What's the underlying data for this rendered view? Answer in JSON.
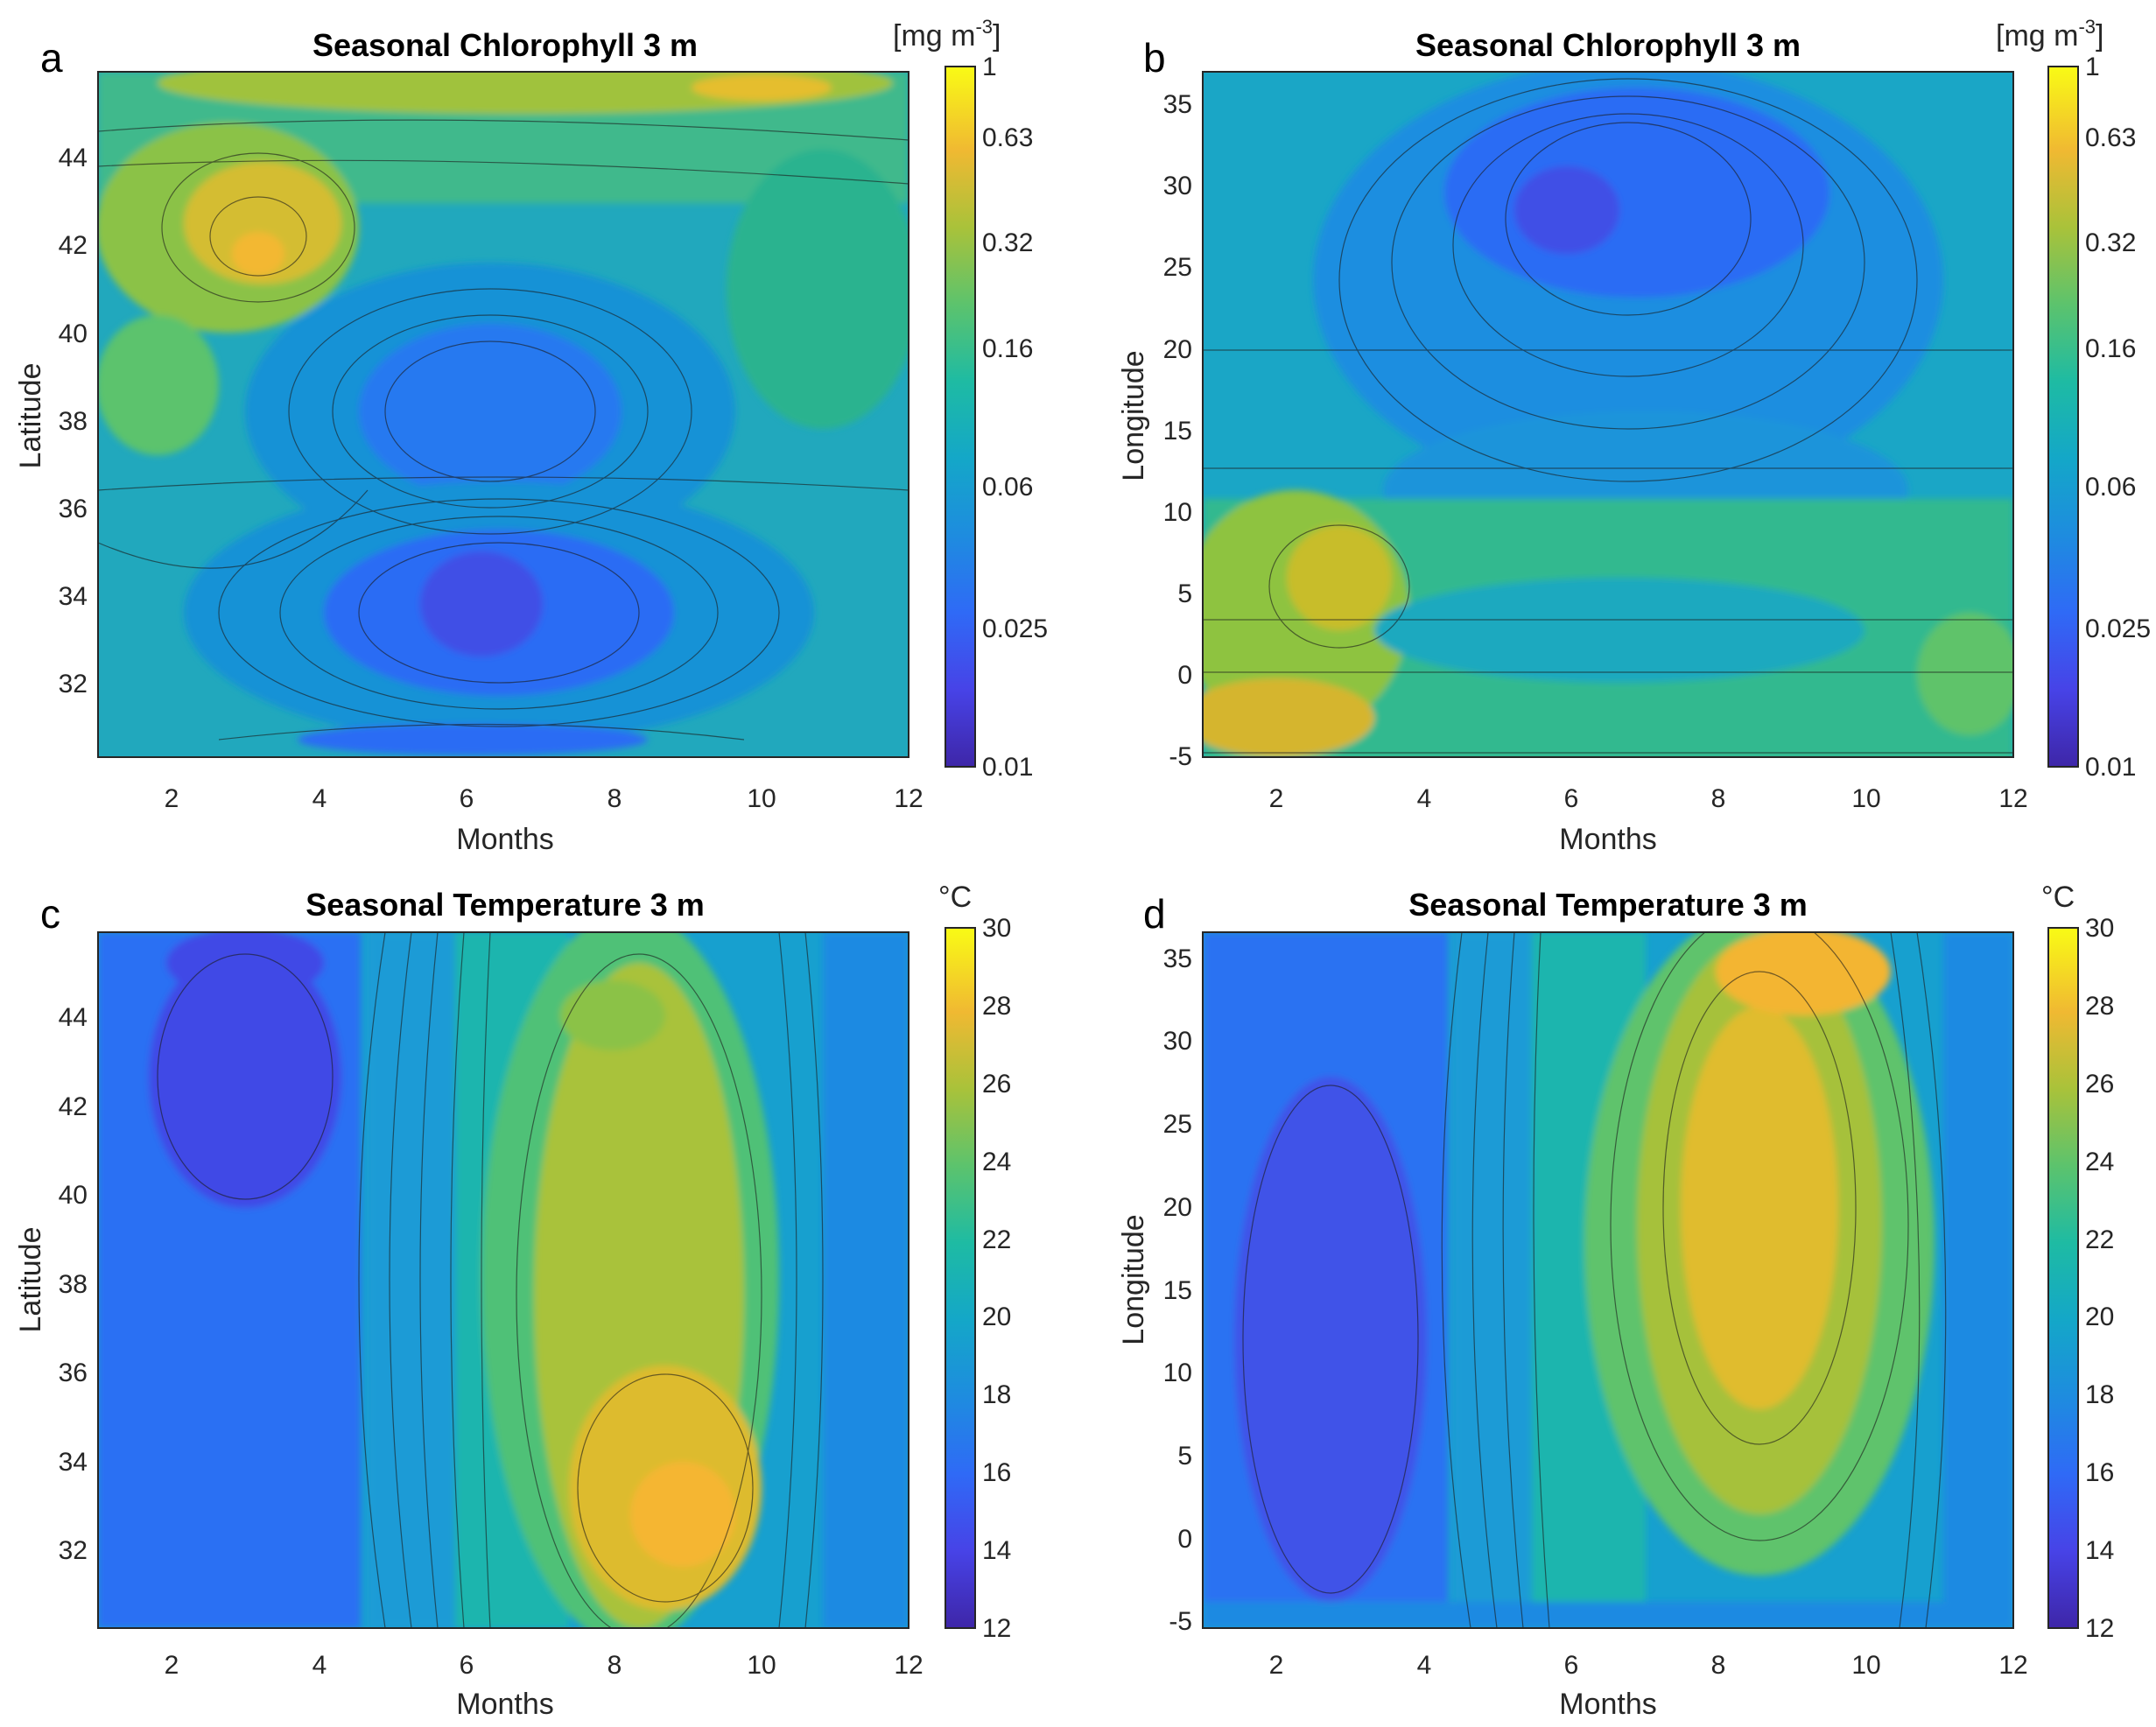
{
  "figure": {
    "panels": [
      {
        "id": "a",
        "letter": "a",
        "title": "Seasonal Chlorophyll 3 m",
        "variable": "chl"
      },
      {
        "id": "b",
        "letter": "b",
        "title": "Seasonal Chlorophyll 3 m",
        "variable": "chl"
      },
      {
        "id": "c",
        "letter": "c",
        "title": "Seasonal Temperature 3 m",
        "variable": "temp"
      },
      {
        "id": "d",
        "letter": "d",
        "title": "Seasonal Temperature 3 m",
        "variable": "temp"
      }
    ]
  },
  "chart_data": [
    {
      "id": "a",
      "type": "heatmap",
      "title": "Seasonal Chlorophyll 3 m",
      "xlabel": "Months",
      "ylabel": "Latitude",
      "xlim": [
        1,
        12
      ],
      "ylim": [
        30.4,
        45.8
      ],
      "xticks": [
        "2",
        "4",
        "6",
        "8",
        "10",
        "12"
      ],
      "yticks": [
        "32",
        "34",
        "36",
        "38",
        "40",
        "42",
        "44"
      ],
      "colorbar": {
        "unit": "[mg m-3]",
        "unit_base": "[mg m",
        "unit_sup": "-3",
        "unit_end": "]",
        "scale": "log",
        "ticks": [
          "1",
          "0.63",
          "0.32",
          "0.16",
          "0.06",
          "0.025",
          "0.01"
        ]
      },
      "description_values": {
        "max_chl_month": 3,
        "max_chl_lat": 41.5,
        "max_chl": 0.5,
        "min_chl_month": 6,
        "min_chl_lat": 33.5,
        "min_chl": 0.025
      }
    },
    {
      "id": "b",
      "type": "heatmap",
      "title": "Seasonal Chlorophyll 3 m",
      "xlabel": "Months",
      "ylabel": "Longitude",
      "xlim": [
        1,
        12
      ],
      "ylim": [
        -5.5,
        36.5
      ],
      "xticks": [
        "2",
        "4",
        "6",
        "8",
        "10",
        "12"
      ],
      "yticks": [
        "-5",
        "0",
        "5",
        "10",
        "15",
        "20",
        "25",
        "30",
        "35"
      ],
      "colorbar": {
        "unit": "[mg m-3]",
        "unit_base": "[mg m",
        "unit_sup": "-3",
        "unit_end": "]",
        "scale": "log",
        "ticks": [
          "1",
          "0.63",
          "0.32",
          "0.16",
          "0.06",
          "0.025",
          "0.01"
        ]
      },
      "description_values": {
        "max_chl_month": 2.5,
        "max_chl_lon": -3,
        "max_chl": 0.4,
        "min_chl_month": 6,
        "min_chl_lon": 27,
        "min_chl": 0.03
      }
    },
    {
      "id": "c",
      "type": "heatmap",
      "title": "Seasonal Temperature 3 m",
      "xlabel": "Months",
      "ylabel": "Latitude",
      "xlim": [
        1,
        12
      ],
      "ylim": [
        30.4,
        45.8
      ],
      "xticks": [
        "2",
        "4",
        "6",
        "8",
        "10",
        "12"
      ],
      "yticks": [
        "32",
        "34",
        "36",
        "38",
        "40",
        "42",
        "44"
      ],
      "colorbar": {
        "unit": "°C",
        "scale": "linear",
        "min": 12,
        "max": 30,
        "ticks": [
          "30",
          "28",
          "26",
          "24",
          "22",
          "20",
          "18",
          "16",
          "14",
          "12"
        ]
      },
      "description_values": {
        "min_temp_month": 3,
        "min_temp": 13,
        "max_temp_month": 9,
        "max_temp": 27
      }
    },
    {
      "id": "d",
      "type": "heatmap",
      "title": "Seasonal Temperature 3 m",
      "xlabel": "Months",
      "ylabel": "Longitude",
      "xlim": [
        1,
        12
      ],
      "ylim": [
        -5.5,
        36.5
      ],
      "xticks": [
        "2",
        "4",
        "6",
        "8",
        "10",
        "12"
      ],
      "yticks": [
        "-5",
        "0",
        "5",
        "10",
        "15",
        "20",
        "25",
        "30",
        "35"
      ],
      "colorbar": {
        "unit": "°C",
        "scale": "linear",
        "min": 12,
        "max": 30,
        "ticks": [
          "30",
          "28",
          "26",
          "24",
          "22",
          "20",
          "18",
          "16",
          "14",
          "12"
        ]
      },
      "description_values": {
        "min_temp_month": 3,
        "min_temp": 14.5,
        "max_temp_month": 8.5,
        "max_temp": 27
      }
    }
  ]
}
